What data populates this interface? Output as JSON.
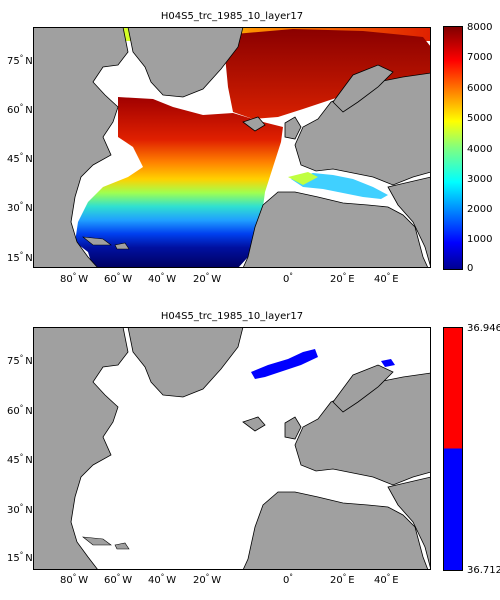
{
  "panels": [
    {
      "title": "H04S5_trc_1985_10_layer17",
      "colorbar": {
        "type": "jet",
        "ticks": [
          "8000",
          "7000",
          "6000",
          "5000",
          "4000",
          "3000",
          "2000",
          "1000",
          "0"
        ],
        "min": 0,
        "max": 8000
      }
    },
    {
      "title": "H04S5_trc_1985_10_layer17",
      "colorbar": {
        "type": "two-color",
        "colors": [
          "#0000ff",
          "#ff0000"
        ],
        "ticks": [
          "36.946",
          "36.712"
        ],
        "max_label": "36.946",
        "min_label": "36.712"
      }
    }
  ],
  "axes": {
    "x_ticks": [
      "80",
      "60",
      "40",
      "20",
      "0",
      "20",
      "40"
    ],
    "x_suffix": [
      "W",
      "W",
      "W",
      "W",
      "",
      "E",
      "E"
    ],
    "y_ticks": [
      "75",
      "60",
      "45",
      "30",
      "15"
    ],
    "y_suffix": "N"
  },
  "colors": {
    "land": "#a0a0a0",
    "ocean_nodata": "#ffffff",
    "coast": "#000000"
  }
}
